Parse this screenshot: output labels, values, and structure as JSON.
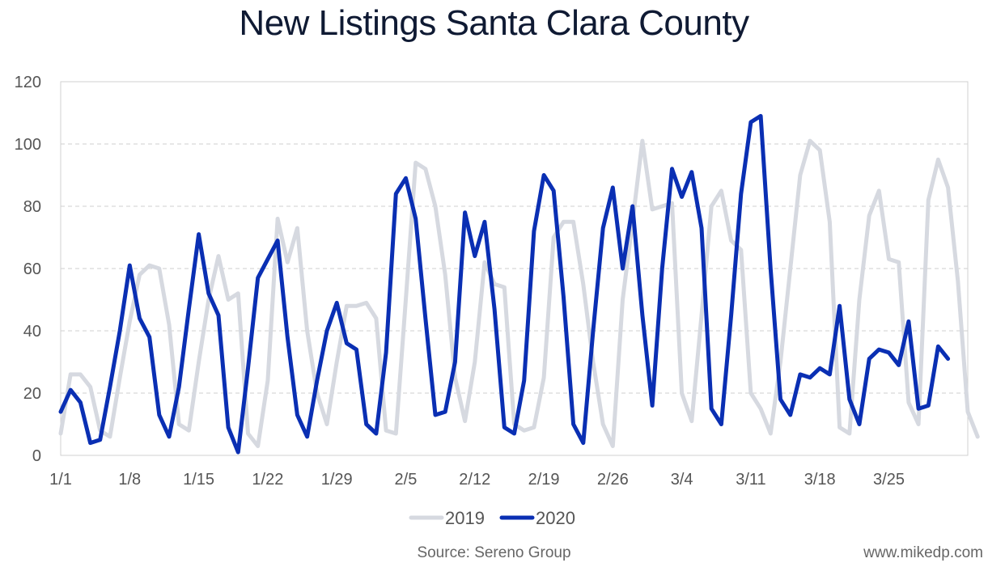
{
  "chart_data": {
    "type": "line",
    "title": "New Listings Santa Clara County",
    "xlabel": "",
    "ylabel": "",
    "ylim": [
      0,
      120
    ],
    "yticks": [
      0,
      20,
      40,
      60,
      80,
      100,
      120
    ],
    "xticks": [
      "1/1",
      "1/8",
      "1/15",
      "1/22",
      "1/29",
      "2/5",
      "2/12",
      "2/19",
      "2/26",
      "3/4",
      "3/11",
      "3/18",
      "3/25"
    ],
    "x_days": 92,
    "grid": true,
    "legend_position": "bottom-center",
    "series": [
      {
        "name": "2019",
        "color": "#d6d9e0",
        "width": 5,
        "values": [
          7,
          26,
          26,
          22,
          8,
          6,
          25,
          43,
          58,
          61,
          60,
          42,
          10,
          8,
          30,
          50,
          64,
          50,
          52,
          7,
          3,
          24,
          76,
          62,
          73,
          40,
          20,
          10,
          30,
          48,
          48,
          49,
          44,
          8,
          7,
          50,
          94,
          92,
          80,
          58,
          25,
          11,
          30,
          62,
          55,
          54,
          10,
          8,
          9,
          25,
          70,
          75,
          75,
          55,
          30,
          10,
          3,
          50,
          75,
          101,
          79,
          80,
          81,
          20,
          11,
          45,
          80,
          85,
          69,
          66,
          20,
          15,
          7,
          30,
          60,
          90,
          101,
          98,
          75,
          9,
          7,
          50,
          77,
          85,
          63,
          62,
          17,
          10,
          82,
          95,
          86,
          56,
          14,
          6
        ]
      },
      {
        "name": "2020",
        "color": "#0a2fb3",
        "width": 5,
        "values": [
          14,
          21,
          17,
          4,
          5,
          22,
          40,
          61,
          44,
          38,
          13,
          6,
          22,
          47,
          71,
          52,
          45,
          9,
          1,
          28,
          57,
          63,
          69,
          38,
          13,
          6,
          24,
          40,
          49,
          36,
          34,
          10,
          7,
          33,
          84,
          89,
          76,
          44,
          13,
          14,
          30,
          78,
          64,
          75,
          47,
          9,
          7,
          24,
          72,
          90,
          85,
          51,
          10,
          4,
          40,
          73,
          86,
          60,
          80,
          45,
          16,
          60,
          92,
          83,
          91,
          73,
          15,
          10,
          45,
          84,
          107,
          109,
          60,
          18,
          13,
          26,
          25,
          28,
          26,
          48,
          18,
          10,
          31,
          34,
          33,
          29,
          43,
          15,
          16,
          35,
          31
        ]
      }
    ],
    "source": "Source: Sereno Group",
    "watermark": "www.mikedp.com"
  }
}
